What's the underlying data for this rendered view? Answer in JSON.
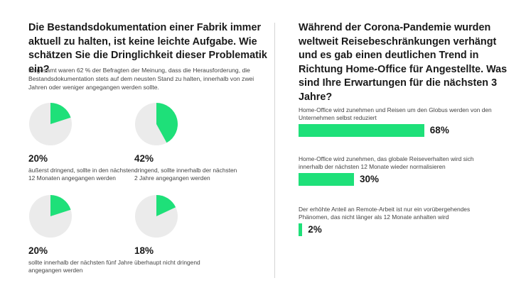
{
  "left": {
    "title": "Die Bestandsdokumentation einer Fabrik immer aktuell zu halten, ist keine leichte Aufgabe. Wie schätzen Sie die Dringlichkeit dieser Problematik ein?",
    "description": "Insgesamt waren 62 % der Befragten der Meinung, dass die Herausforderung, die Bestandsdokumentation stets auf dem neusten Stand zu halten, innerhalb von zwei Jahren oder weniger angegangen werden sollte."
  },
  "right": {
    "title": "Während der Corona-Pandemie wurden weltweit Reisebeschränkungen verhängt und es gab einen deutlichen Trend in Richtung Home-Office für Angestellte. Was sind Ihre Erwartungen für die nächsten 3 Jahre?"
  },
  "colors": {
    "accent": "#1ee079",
    "pie_background": "#ebebeb"
  },
  "chart_data": [
    {
      "type": "pie",
      "items": [
        {
          "value": 20,
          "value_label": "20%",
          "label": "äußerst dringend, sollte in den nächsten 12 Monaten angegangen werden"
        },
        {
          "value": 42,
          "value_label": "42%",
          "label": "dringend, sollte innerhalb der nächsten 2 Jahre angegangen werden"
        },
        {
          "value": 20,
          "value_label": "20%",
          "label": "sollte innerhalb der nächsten fünf Jahre angegangen werden"
        },
        {
          "value": 18,
          "value_label": "18%",
          "label": "überhaupt nicht dringend"
        }
      ]
    },
    {
      "type": "bar",
      "orientation": "horizontal",
      "xlim": [
        0,
        100
      ],
      "items": [
        {
          "value": 68,
          "value_label": "68%",
          "label": "Home-Office wird zunehmen und Reisen um den Globus werden von den Unternehmen selbst reduziert"
        },
        {
          "value": 30,
          "value_label": "30%",
          "label": "Home-Office wird zunehmen, das globale Reiseverhalten wird sich innerhalb der nächsten 12 Monate wieder normalisieren"
        },
        {
          "value": 2,
          "value_label": "2%",
          "label": "Der erhöhte Anteil an Remote-Arbeit ist nur ein vorübergehendes Phänomen, das nicht länger als 12 Monate anhalten wird"
        }
      ]
    }
  ]
}
